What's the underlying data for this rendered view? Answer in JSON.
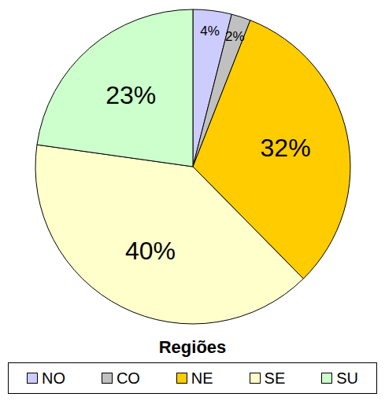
{
  "chart_data": {
    "type": "pie",
    "legend_title": "Regiões",
    "categories": [
      "NO",
      "CO",
      "NE",
      "SE",
      "SU"
    ],
    "values": [
      4,
      2,
      32,
      40,
      23
    ],
    "value_labels": [
      "4%",
      "2%",
      "32%",
      "40%",
      "23%"
    ],
    "colors": [
      "#ccccff",
      "#c0c0c0",
      "#ffcc00",
      "#ffffcc",
      "#ccffcc"
    ],
    "data_labels": true,
    "legend": "bottom"
  }
}
